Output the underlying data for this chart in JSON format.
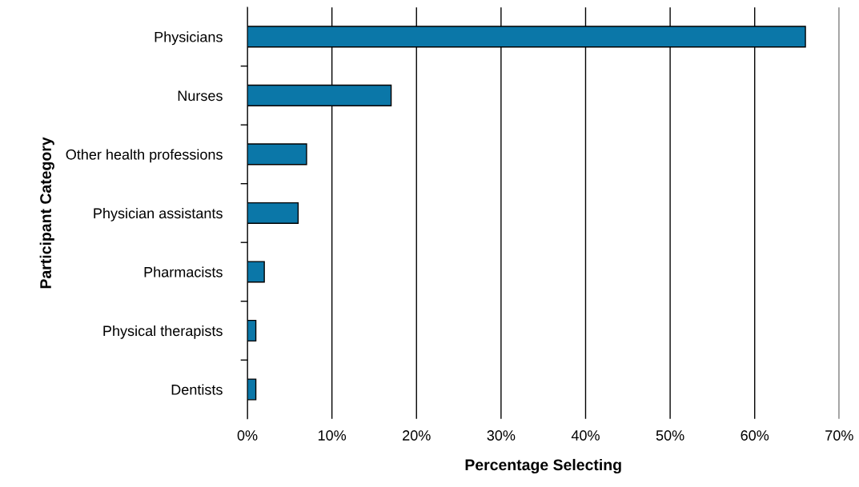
{
  "chart_data": {
    "type": "bar",
    "orientation": "horizontal",
    "xlabel": "Percentage Selecting",
    "ylabel": "Participant Category",
    "categories": [
      "Physicians",
      "Nurses",
      "Other health professions",
      "Physician assistants",
      "Pharmacists",
      "Physical therapists",
      "Dentists"
    ],
    "values": [
      66,
      17,
      7,
      6,
      2,
      1,
      1
    ],
    "color": "#0b77a8",
    "xlim": [
      0,
      70
    ],
    "xticks": [
      {
        "value": 0,
        "label": "0%"
      },
      {
        "value": 10,
        "label": "10%"
      },
      {
        "value": 20,
        "label": "20%"
      },
      {
        "value": 30,
        "label": "30%"
      },
      {
        "value": 40,
        "label": "40%"
      },
      {
        "value": 50,
        "label": "50%"
      },
      {
        "value": 60,
        "label": "60%"
      },
      {
        "value": 70,
        "label": "70%"
      }
    ],
    "grid": "x",
    "legend": false
  }
}
